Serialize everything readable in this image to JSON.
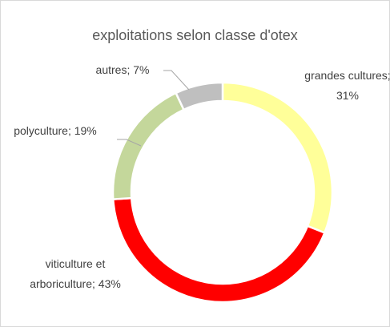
{
  "chart_data": {
    "type": "pie",
    "title": "exploitations selon classe d'otex",
    "values": [
      31,
      43,
      19,
      7
    ],
    "value_labels": [
      "grandes cultures; 31%",
      "viticulture et arboriculture; 43%",
      "polyculture; 19%",
      "autres; 7%"
    ],
    "colors": [
      "#ffff99",
      "#ff0000",
      "#c4d79b",
      "#bfbfbf"
    ],
    "donut": true
  }
}
